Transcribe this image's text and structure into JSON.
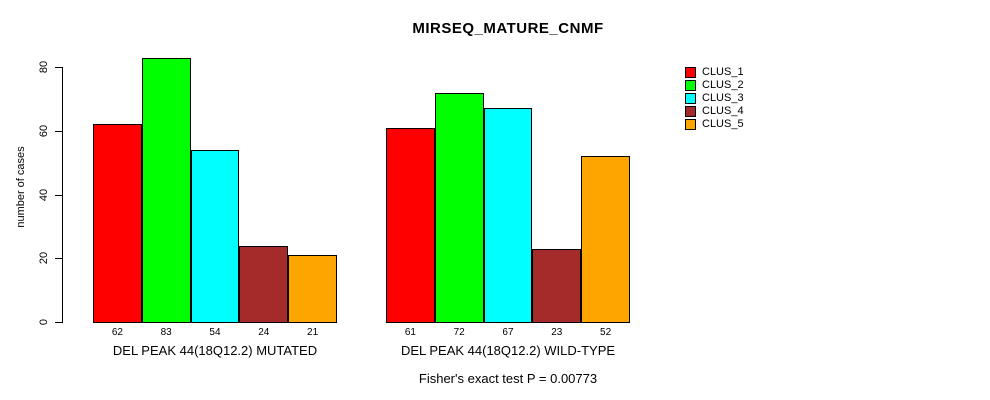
{
  "title": "MIRSEQ_MATURE_CNMF",
  "ylabel": "number of cases",
  "footer": "Fisher's exact test P = 0.00773",
  "colors": {
    "bar_border": "#000000",
    "background": "#ffffff",
    "text": "#000000"
  },
  "chart_data": {
    "type": "bar",
    "title": "MIRSEQ_MATURE_CNMF",
    "xlabel": "",
    "ylabel": "number of cases",
    "ylim": [
      0,
      85
    ],
    "y_ticks": [
      0,
      20,
      40,
      60,
      80
    ],
    "grid": false,
    "legend_position": "right",
    "bar_value_labels": true,
    "categories": [
      "DEL PEAK 44(18Q12.2) MUTATED",
      "DEL PEAK 44(18Q12.2) WILD-TYPE"
    ],
    "series": [
      {
        "name": "CLUS_1",
        "color": "#ff0000",
        "values": [
          62,
          61
        ]
      },
      {
        "name": "CLUS_2",
        "color": "#00ff00",
        "values": [
          83,
          72
        ]
      },
      {
        "name": "CLUS_3",
        "color": "#00ffff",
        "values": [
          54,
          67
        ]
      },
      {
        "name": "CLUS_4",
        "color": "#a52a2a",
        "values": [
          24,
          23
        ]
      },
      {
        "name": "CLUS_5",
        "color": "#ffa500",
        "values": [
          21,
          52
        ]
      }
    ],
    "annotation": "Fisher's exact test P = 0.00773"
  }
}
